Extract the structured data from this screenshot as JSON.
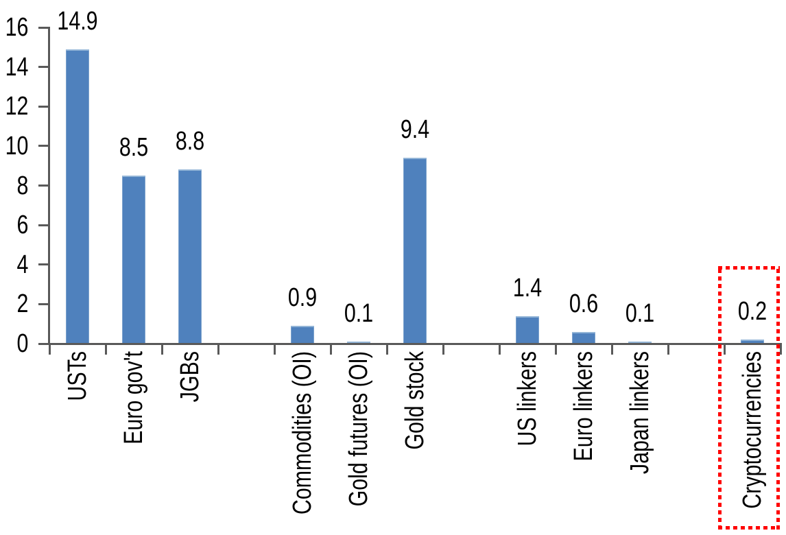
{
  "chart_data": {
    "type": "bar",
    "title": "",
    "categories": [
      "USTs",
      "Euro gov't",
      "JGBs",
      "",
      "Commodities (OI)",
      "Gold futures (OI)",
      "Gold stock",
      "",
      "US linkers",
      "Euro linkers",
      "Japan linkers",
      "",
      "Cryptocurrencies"
    ],
    "values": [
      14.9,
      8.5,
      8.8,
      null,
      0.9,
      0.1,
      9.4,
      null,
      1.4,
      0.6,
      0.1,
      null,
      0.2
    ],
    "data_labels": [
      "14.9",
      "8.5",
      "8.8",
      "",
      "0.9",
      "0.1",
      "9.4",
      "",
      "1.4",
      "0.6",
      "0.1",
      "",
      "0.2"
    ],
    "xlabel": "",
    "ylabel": "",
    "ylim": [
      0,
      16
    ],
    "yticks": [
      0,
      2,
      4,
      6,
      8,
      10,
      12,
      14,
      16
    ],
    "grid": false,
    "legend": "none",
    "bar_color": "#4f81bd",
    "bar_top_edge_color": "#93b5d7",
    "axis_color": "#595959",
    "text_color": "#000000",
    "annotation": {
      "type": "red-dotted-box",
      "target_category": "Cryptocurrencies",
      "color": "#ff0000"
    }
  }
}
